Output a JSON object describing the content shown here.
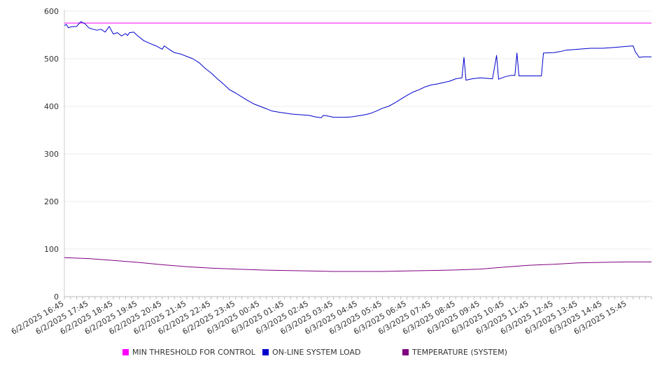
{
  "chart_data": {
    "type": "line",
    "x_start": "6/2/2025 16:45",
    "x_end": "6/3/2025 16:45",
    "x_tick_labels": [
      "6/2/2025 16:45",
      "6/2/2025 17:45",
      "6/2/2025 18:45",
      "6/2/2025 19:45",
      "6/2/2025 20:45",
      "6/2/2025 21:45",
      "6/2/2025 22:45",
      "6/2/2025 23:45",
      "6/3/2025 00:45",
      "6/3/2025 01:45",
      "6/3/2025 02:45",
      "6/3/2025 03:45",
      "6/3/2025 04:45",
      "6/3/2025 05:45",
      "6/3/2025 06:45",
      "6/3/2025 07:45",
      "6/3/2025 08:45",
      "6/3/2025 09:45",
      "6/3/2025 10:45",
      "6/3/2025 11:45",
      "6/3/2025 12:45",
      "6/3/2025 13:45",
      "6/3/2025 14:45",
      "6/3/2025 15:45"
    ],
    "y_ticks": [
      0,
      100,
      200,
      300,
      400,
      500,
      600
    ],
    "ylim": [
      0,
      600
    ],
    "grid": true,
    "legend_position": "bottom",
    "series": [
      {
        "name": "MIN THRESHOLD FOR CONTROL",
        "color": "#ff00ff",
        "points": [
          [
            "6/2/2025 16:45",
            575
          ],
          [
            "6/3/2025 16:45",
            575
          ]
        ]
      },
      {
        "name": "ON-LINE SYSTEM LOAD",
        "color": "#0000cc",
        "points": [
          [
            "6/2/2025 16:45",
            570
          ],
          [
            "6/2/2025 16:50",
            572
          ],
          [
            "6/2/2025 16:55",
            565
          ],
          [
            "6/2/2025 17:00",
            567
          ],
          [
            "6/2/2025 17:15",
            568
          ],
          [
            "6/2/2025 17:25",
            578
          ],
          [
            "6/2/2025 17:35",
            574
          ],
          [
            "6/2/2025 17:45",
            565
          ],
          [
            "6/2/2025 17:55",
            562
          ],
          [
            "6/2/2025 18:05",
            560
          ],
          [
            "6/2/2025 18:15",
            562
          ],
          [
            "6/2/2025 18:25",
            556
          ],
          [
            "6/2/2025 18:35",
            568
          ],
          [
            "6/2/2025 18:45",
            552
          ],
          [
            "6/2/2025 18:55",
            555
          ],
          [
            "6/2/2025 19:05",
            548
          ],
          [
            "6/2/2025 19:15",
            553
          ],
          [
            "6/2/2025 19:20",
            549
          ],
          [
            "6/2/2025 19:25",
            555
          ],
          [
            "6/2/2025 19:35",
            556
          ],
          [
            "6/2/2025 19:45",
            548
          ],
          [
            "6/2/2025 20:00",
            538
          ],
          [
            "6/2/2025 20:15",
            532
          ],
          [
            "6/2/2025 20:30",
            527
          ],
          [
            "6/2/2025 20:45",
            520
          ],
          [
            "6/2/2025 20:50",
            527
          ],
          [
            "6/2/2025 21:05",
            518
          ],
          [
            "6/2/2025 21:15",
            513
          ],
          [
            "6/2/2025 21:30",
            510
          ],
          [
            "6/2/2025 21:45",
            505
          ],
          [
            "6/2/2025 22:00",
            500
          ],
          [
            "6/2/2025 22:15",
            492
          ],
          [
            "6/2/2025 22:30",
            480
          ],
          [
            "6/2/2025 22:45",
            470
          ],
          [
            "6/2/2025 23:00",
            458
          ],
          [
            "6/2/2025 23:15",
            447
          ],
          [
            "6/2/2025 23:30",
            435
          ],
          [
            "6/2/2025 23:45",
            428
          ],
          [
            "6/3/2025 00:00",
            420
          ],
          [
            "6/3/2025 00:15",
            412
          ],
          [
            "6/3/2025 00:30",
            405
          ],
          [
            "6/3/2025 00:45",
            400
          ],
          [
            "6/3/2025 01:00",
            395
          ],
          [
            "6/3/2025 01:15",
            390
          ],
          [
            "6/3/2025 01:30",
            388
          ],
          [
            "6/3/2025 01:45",
            386
          ],
          [
            "6/3/2025 02:00",
            384
          ],
          [
            "6/3/2025 02:15",
            383
          ],
          [
            "6/3/2025 02:30",
            382
          ],
          [
            "6/3/2025 02:45",
            381
          ],
          [
            "6/3/2025 03:00",
            378
          ],
          [
            "6/3/2025 03:15",
            376
          ],
          [
            "6/3/2025 03:20",
            381
          ],
          [
            "6/3/2025 03:35",
            379
          ],
          [
            "6/3/2025 03:45",
            377
          ],
          [
            "6/3/2025 04:15",
            377
          ],
          [
            "6/3/2025 04:30",
            378
          ],
          [
            "6/3/2025 04:45",
            380
          ],
          [
            "6/3/2025 05:00",
            382
          ],
          [
            "6/3/2025 05:15",
            385
          ],
          [
            "6/3/2025 05:30",
            390
          ],
          [
            "6/3/2025 05:45",
            396
          ],
          [
            "6/3/2025 06:00",
            400
          ],
          [
            "6/3/2025 06:15",
            407
          ],
          [
            "6/3/2025 06:30",
            415
          ],
          [
            "6/3/2025 06:45",
            423
          ],
          [
            "6/3/2025 07:00",
            430
          ],
          [
            "6/3/2025 07:15",
            435
          ],
          [
            "6/3/2025 07:30",
            441
          ],
          [
            "6/3/2025 07:45",
            445
          ],
          [
            "6/3/2025 08:00",
            447
          ],
          [
            "6/3/2025 08:15",
            450
          ],
          [
            "6/3/2025 08:30",
            453
          ],
          [
            "6/3/2025 08:45",
            458
          ],
          [
            "6/3/2025 09:00",
            460
          ],
          [
            "6/3/2025 09:05",
            503
          ],
          [
            "6/3/2025 09:10",
            455
          ],
          [
            "6/3/2025 09:25",
            458
          ],
          [
            "6/3/2025 09:45",
            460
          ],
          [
            "6/3/2025 10:15",
            458
          ],
          [
            "6/3/2025 10:25",
            507
          ],
          [
            "6/3/2025 10:30",
            457
          ],
          [
            "6/3/2025 10:45",
            462
          ],
          [
            "6/3/2025 11:00",
            465
          ],
          [
            "6/3/2025 11:10",
            465
          ],
          [
            "6/3/2025 11:15",
            512
          ],
          [
            "6/3/2025 11:20",
            464
          ],
          [
            "6/3/2025 11:45",
            464
          ],
          [
            "6/3/2025 12:15",
            464
          ],
          [
            "6/3/2025 12:20",
            512
          ],
          [
            "6/3/2025 12:45",
            513
          ],
          [
            "6/3/2025 13:00",
            515
          ],
          [
            "6/3/2025 13:15",
            518
          ],
          [
            "6/3/2025 13:45",
            520
          ],
          [
            "6/3/2025 14:15",
            522
          ],
          [
            "6/3/2025 14:45",
            522
          ],
          [
            "6/3/2025 15:15",
            524
          ],
          [
            "6/3/2025 15:45",
            526
          ],
          [
            "6/3/2025 16:00",
            527
          ],
          [
            "6/3/2025 16:05",
            515
          ],
          [
            "6/3/2025 16:15",
            503
          ],
          [
            "6/3/2025 16:25",
            504
          ],
          [
            "6/3/2025 16:45",
            504
          ]
        ]
      },
      {
        "name": "TEMPERATURE (SYSTEM)",
        "color": "#800080",
        "points": [
          [
            "6/2/2025 16:45",
            82
          ],
          [
            "6/2/2025 17:45",
            80
          ],
          [
            "6/2/2025 18:45",
            76
          ],
          [
            "6/2/2025 19:45",
            72
          ],
          [
            "6/2/2025 20:45",
            67
          ],
          [
            "6/2/2025 21:45",
            63
          ],
          [
            "6/2/2025 22:45",
            60
          ],
          [
            "6/2/2025 23:45",
            58
          ],
          [
            "6/3/2025 00:45",
            56
          ],
          [
            "6/3/2025 01:45",
            55
          ],
          [
            "6/3/2025 02:45",
            54
          ],
          [
            "6/3/2025 03:45",
            53
          ],
          [
            "6/3/2025 04:45",
            53
          ],
          [
            "6/3/2025 05:45",
            53
          ],
          [
            "6/3/2025 06:45",
            54
          ],
          [
            "6/3/2025 07:45",
            55
          ],
          [
            "6/3/2025 08:45",
            56
          ],
          [
            "6/3/2025 09:45",
            58
          ],
          [
            "6/3/2025 10:45",
            62
          ],
          [
            "6/3/2025 11:45",
            66
          ],
          [
            "6/3/2025 12:45",
            68
          ],
          [
            "6/3/2025 13:45",
            71
          ],
          [
            "6/3/2025 14:45",
            72
          ],
          [
            "6/3/2025 15:45",
            73
          ],
          [
            "6/3/2025 16:45",
            73
          ]
        ]
      }
    ]
  }
}
